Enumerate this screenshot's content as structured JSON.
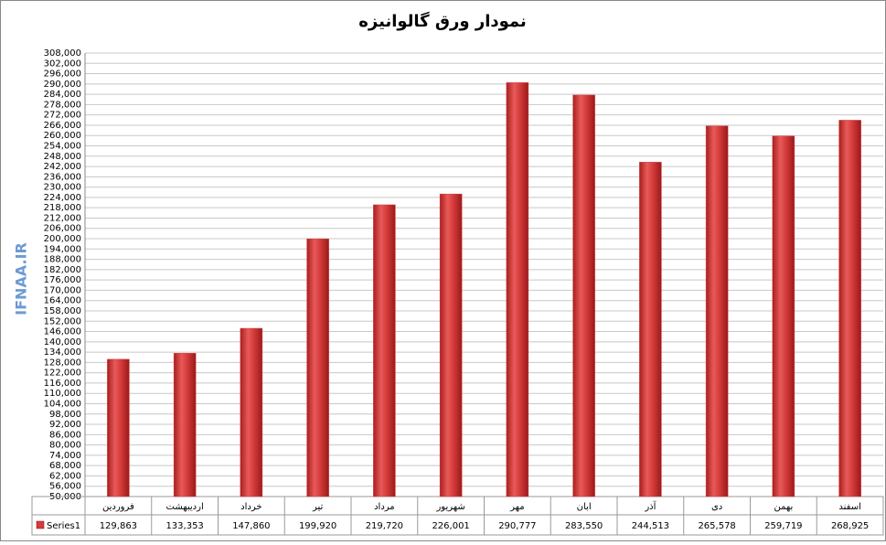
{
  "chart_data": {
    "type": "bar",
    "title": "نمودار ورق گالوانیزه",
    "watermark": "IFNAA.IR",
    "categories": [
      "فروردین",
      "اردیبهشت",
      "خرداد",
      "تیر",
      "مرداد",
      "شهریور",
      "مهر",
      "ابان",
      "آذر",
      "دی",
      "بهمن",
      "اسفند"
    ],
    "series": [
      {
        "name": "Series1",
        "color": "#d63c3c",
        "values": [
          129863,
          133353,
          147860,
          199920,
          219720,
          226001,
          290777,
          283550,
          244513,
          265578,
          259719,
          268925
        ],
        "value_labels": [
          "129,863",
          "133,353",
          "147,860",
          "199,920",
          "219,720",
          "226,001",
          "290,777",
          "283,550",
          "244,513",
          "265,578",
          "259,719",
          "268,925"
        ]
      }
    ],
    "ylim": [
      50000,
      308000
    ],
    "yticks": [
      {
        "value": 50000,
        "label": "50,000"
      },
      {
        "value": 56000,
        "label": "56,000"
      },
      {
        "value": 62000,
        "label": "62,000"
      },
      {
        "value": 68000,
        "label": "68,000"
      },
      {
        "value": 74000,
        "label": "74,000"
      },
      {
        "value": 80000,
        "label": "80,000"
      },
      {
        "value": 86000,
        "label": "86,000"
      },
      {
        "value": 92000,
        "label": "92,000"
      },
      {
        "value": 98000,
        "label": "98,000"
      },
      {
        "value": 104000,
        "label": "104,000"
      },
      {
        "value": 110000,
        "label": "110,000"
      },
      {
        "value": 116000,
        "label": "116,000"
      },
      {
        "value": 122000,
        "label": "122,000"
      },
      {
        "value": 128000,
        "label": "128,000"
      },
      {
        "value": 134000,
        "label": "134,000"
      },
      {
        "value": 140000,
        "label": "140,000"
      },
      {
        "value": 146000,
        "label": "146,000"
      },
      {
        "value": 152000,
        "label": "152,000"
      },
      {
        "value": 158000,
        "label": "158,000"
      },
      {
        "value": 164000,
        "label": "164,000"
      },
      {
        "value": 170000,
        "label": "170,000"
      },
      {
        "value": 176000,
        "label": "176,000"
      },
      {
        "value": 182000,
        "label": "182,000"
      },
      {
        "value": 188000,
        "label": "188,000"
      },
      {
        "value": 194000,
        "label": "194,000"
      },
      {
        "value": 200000,
        "label": "200,000"
      },
      {
        "value": 206000,
        "label": "206,000"
      },
      {
        "value": 212000,
        "label": "212,000"
      },
      {
        "value": 218000,
        "label": "218,000"
      },
      {
        "value": 224000,
        "label": "224,000"
      },
      {
        "value": 230000,
        "label": "230,000"
      },
      {
        "value": 236000,
        "label": "236,000"
      },
      {
        "value": 242000,
        "label": "242,000"
      },
      {
        "value": 248000,
        "label": "248,000"
      },
      {
        "value": 254000,
        "label": "254,000"
      },
      {
        "value": 260000,
        "label": "260,000"
      },
      {
        "value": 266000,
        "label": "266,000"
      },
      {
        "value": 272000,
        "label": "272,000"
      },
      {
        "value": 278000,
        "label": "278,000"
      },
      {
        "value": 284000,
        "label": "284,000"
      },
      {
        "value": 290000,
        "label": "290,000"
      },
      {
        "value": 296000,
        "label": "296,000"
      },
      {
        "value": 302000,
        "label": "302,000"
      },
      {
        "value": 308000,
        "label": "308,000"
      }
    ],
    "grid": true
  }
}
